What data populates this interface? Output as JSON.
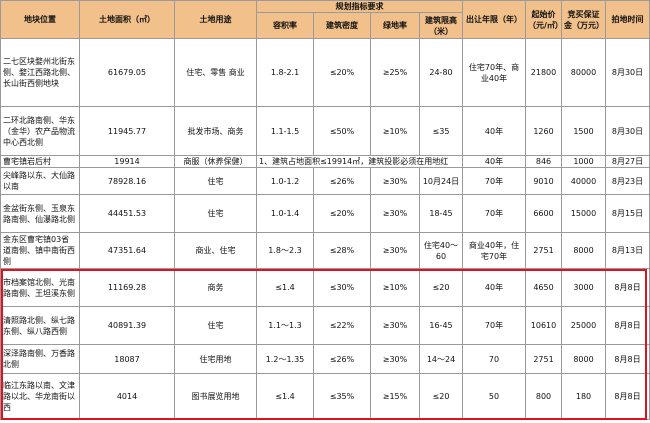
{
  "headers": {
    "location": "地块位置",
    "area": "土地面积（㎡）",
    "use": "土地用途",
    "planning": "规划指标要求",
    "far": "容积率",
    "density": "建筑密度",
    "green": "绿地率",
    "height": "建筑限高（米）",
    "term": "出让年限（年）",
    "price": "起始价（元/㎡）",
    "deposit": "竞买保证金（万元）",
    "date": "拍地时间"
  },
  "rows": [
    {
      "location": "二七区块婺州北街东侧、婺江西路北侧、长山街西侧地块",
      "area": "61679.05",
      "use": "住宅、零售 商业",
      "far": "1.8-2.1",
      "density": "≤20%",
      "green": "≥25%",
      "height": "24-80",
      "term": "住宅70年、商业40年",
      "price": "21800",
      "deposit": "80000",
      "date": "8月30日"
    },
    {
      "location": "二环北路南侧、华东（金华）农产品物流中心西北侧",
      "area": "11945.77",
      "use": "批发市场、商务",
      "far": "1.1-1.5",
      "density": "≤50%",
      "green": "≥10%",
      "height": "≤35",
      "term": "40年",
      "price": "1260",
      "deposit": "1500",
      "date": "8月30日"
    },
    {
      "location": "曹宅镇岩后村",
      "area": "19914",
      "use": "商服（休养保健）",
      "merged": "1、建筑占地面积≤19914㎡，建筑投影必须在用地红",
      "term": "40年",
      "price": "846",
      "deposit": "1000",
      "date": "8月27日"
    },
    {
      "location": "尖峰路以东、大仙路以南",
      "area": "78928.16",
      "use": "住宅",
      "far": "1.0-1.2",
      "density": "≤26%",
      "green": "≥30%",
      "height": "10月24日",
      "term": "70年",
      "price": "9010",
      "deposit": "40000",
      "date": "8月23日"
    },
    {
      "location": "金盆街东侧、玉泉东路南侧、仙瀑路北侧",
      "area": "44451.53",
      "use": "住宅",
      "far": "1.0-1.4",
      "density": "≤20%",
      "green": "≥30%",
      "height": "18-45",
      "term": "70年",
      "price": "6600",
      "deposit": "15000",
      "date": "8月15日"
    },
    {
      "location": "金东区曹宅镇03省道南侧、镇中南街西侧",
      "area": "47351.64",
      "use": "商业、住宅",
      "far": "1.8～2.3",
      "density": "≤28%",
      "green": "≥30%",
      "height": "住宅40～60",
      "term": "商业40年，住宅70年",
      "price": "2751",
      "deposit": "8000",
      "date": "8月13日"
    },
    {
      "location": "市档案馆北侧、光南路南侧、王坦溪东侧",
      "area": "11169.28",
      "use": "商务",
      "far": "≤1.4",
      "density": "≤30%",
      "green": "≥10%",
      "height": "≤20",
      "term": "40年",
      "price": "4650",
      "deposit": "3000",
      "date": "8月8日"
    },
    {
      "location": "清照路北侧、纵七路东侧、纵八路西侧",
      "area": "40891.39",
      "use": "住宅",
      "far": "1.1～1.3",
      "density": "≤22%",
      "green": "≥30%",
      "height": "16-45",
      "term": "70年",
      "price": "10610",
      "deposit": "25000",
      "date": "8月8日"
    },
    {
      "location": "深泽路南侧、万香路北侧",
      "area": "18087",
      "use": "住宅用地",
      "far": "1.2～1.35",
      "density": "≤26%",
      "green": "≥30%",
      "height": "14～24",
      "term": "70",
      "price": "2751",
      "deposit": "8000",
      "date": "8月8日"
    },
    {
      "location": "临江东路以南、文津路以北、华龙南街以西",
      "area": "4014",
      "use": "图书展览用地",
      "far": "≤1.4",
      "density": "≤35%",
      "green": "≥15%",
      "height": "≤20",
      "term": "50",
      "price": "800",
      "deposit": "180",
      "date": "8月8日"
    }
  ]
}
